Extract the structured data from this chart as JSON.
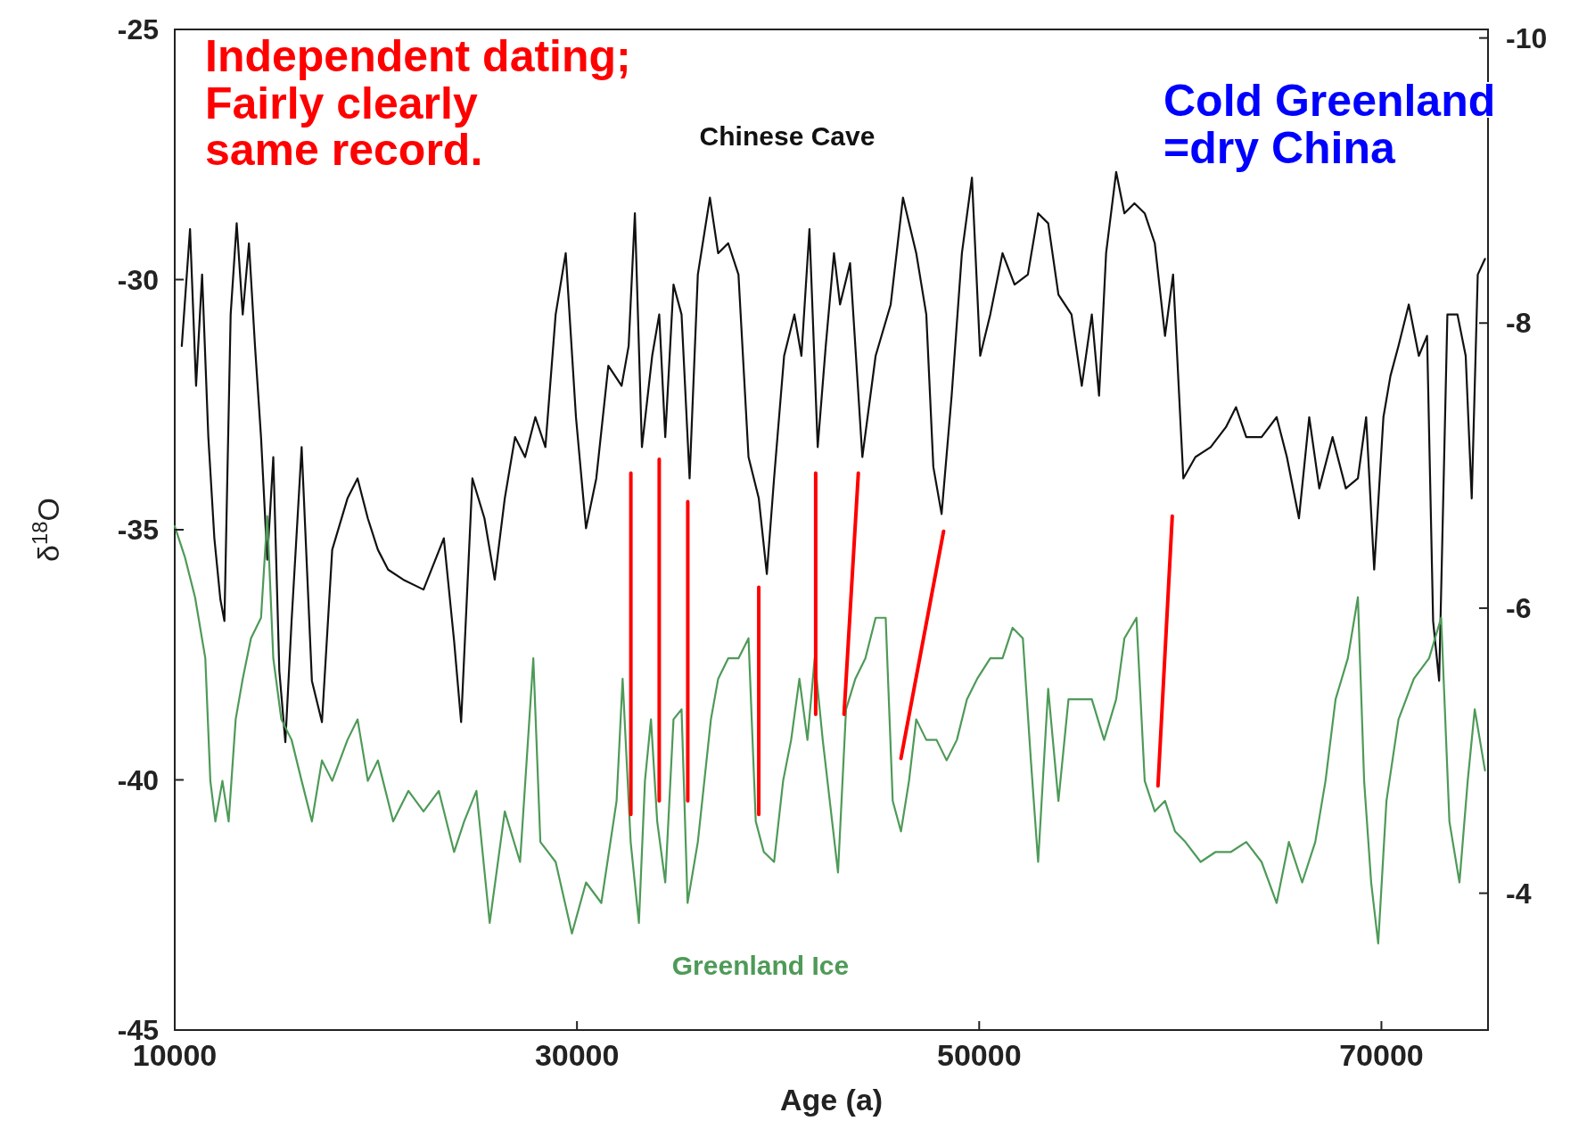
{
  "chart_data": {
    "type": "line",
    "xlabel": "Age (a)",
    "ylabel": "δ$^{18}$O",
    "xlim": [
      10000,
      75300
    ],
    "xticks": [
      10000,
      30000,
      50000,
      70000
    ],
    "ylim": [
      -45,
      -25
    ],
    "yticks": [
      -45,
      -40,
      -35,
      -30,
      -25
    ],
    "y2lim": [
      -3.04,
      -10.06
    ],
    "y2ticks": [
      -10,
      -8,
      -6,
      -4
    ],
    "grid": false,
    "annotations": [
      "Independent dating;\nFairly clearly\nsame record.",
      "Cold Greenland\n=dry China"
    ],
    "series": [
      {
        "name": "Chinese Cave",
        "color": "#111111",
        "axis": "y2",
        "x": [
          10350,
          10760,
          11060,
          11360,
          11670,
          11970,
          12270,
          12470,
          12780,
          13080,
          13380,
          13690,
          13990,
          14290,
          14600,
          14900,
          15200,
          15500,
          15810,
          16310,
          16820,
          17320,
          17830,
          18590,
          19090,
          19600,
          20100,
          20610,
          21360,
          22370,
          23380,
          23890,
          24240,
          24800,
          25400,
          25910,
          26410,
          26920,
          27420,
          27930,
          28430,
          28940,
          29440,
          29950,
          30450,
          30960,
          31560,
          32220,
          32570,
          32880,
          33230,
          33740,
          34090,
          34390,
          34800,
          35200,
          35600,
          36010,
          36610,
          37020,
          37520,
          38030,
          38530,
          39040,
          39440,
          39800,
          40300,
          40810,
          41160,
          41560,
          41970,
          42370,
          42780,
          43080,
          43580,
          44190,
          44850,
          45600,
          46210,
          46870,
          47370,
          47720,
          48130,
          48630,
          49140,
          49640,
          50050,
          50550,
          51160,
          51760,
          52420,
          52930,
          53430,
          53940,
          54590,
          55100,
          55600,
          55960,
          56310,
          56810,
          57220,
          57720,
          58230,
          58730,
          59240,
          59640,
          60150,
          60750,
          61510,
          62270,
          62770,
          63280,
          64040,
          64790,
          65300,
          65900,
          66410,
          66910,
          67570,
          68230,
          68830,
          69240,
          69640,
          70100,
          70450,
          70850,
          71360,
          71860,
          72270,
          72570,
          72870,
          73280,
          73780,
          74190,
          74490,
          74790,
          75150
        ],
        "values": [
          -7.84,
          -8.66,
          -7.56,
          -8.34,
          -7.2,
          -6.49,
          -6.06,
          -5.91,
          -8.06,
          -8.7,
          -8.06,
          -8.56,
          -7.84,
          -7.2,
          -6.34,
          -7.06,
          -5.56,
          -5.06,
          -5.91,
          -7.13,
          -5.49,
          -5.2,
          -6.41,
          -6.77,
          -6.91,
          -6.63,
          -6.41,
          -6.27,
          -6.2,
          -6.13,
          -6.49,
          -5.77,
          -5.2,
          -6.91,
          -6.63,
          -6.2,
          -6.77,
          -7.2,
          -7.06,
          -7.34,
          -7.13,
          -8.06,
          -8.49,
          -7.34,
          -6.56,
          -6.91,
          -7.7,
          -7.56,
          -7.84,
          -8.77,
          -7.13,
          -7.77,
          -8.06,
          -7.2,
          -8.27,
          -8.06,
          -6.91,
          -8.34,
          -8.88,
          -8.49,
          -8.56,
          -8.34,
          -7.06,
          -6.77,
          -6.24,
          -6.91,
          -7.77,
          -8.06,
          -7.77,
          -8.66,
          -7.13,
          -7.84,
          -8.49,
          -8.13,
          -8.42,
          -7.06,
          -7.77,
          -8.13,
          -8.88,
          -8.49,
          -8.06,
          -6.99,
          -6.66,
          -7.49,
          -8.49,
          -9.02,
          -7.77,
          -8.06,
          -8.49,
          -8.27,
          -8.34,
          -8.77,
          -8.7,
          -8.2,
          -8.06,
          -7.56,
          -8.06,
          -7.49,
          -8.49,
          -9.06,
          -8.77,
          -8.84,
          -8.77,
          -8.56,
          -7.91,
          -8.34,
          -6.91,
          -7.06,
          -7.13,
          -7.27,
          -7.41,
          -7.2,
          -7.2,
          -7.34,
          -7.06,
          -6.63,
          -7.34,
          -6.84,
          -7.2,
          -6.84,
          -6.91,
          -7.34,
          -6.27,
          -7.34,
          -7.63,
          -7.84,
          -8.13,
          -7.77,
          -7.91,
          -5.91,
          -5.49,
          -8.06,
          -8.06,
          -7.77,
          -6.77,
          -8.34,
          -8.45
        ]
      },
      {
        "name": "Greenland Ice",
        "color": "#4e9a58",
        "x": [
          10000,
          10500,
          11010,
          11520,
          11770,
          12020,
          12370,
          12680,
          13030,
          13380,
          13790,
          14290,
          14600,
          14900,
          15300,
          15810,
          16310,
          16820,
          17320,
          17830,
          18590,
          19090,
          19600,
          20100,
          20860,
          21620,
          22370,
          23130,
          23890,
          24390,
          25000,
          25660,
          26410,
          27170,
          27830,
          28180,
          28940,
          29750,
          30450,
          31210,
          31970,
          32270,
          32670,
          33080,
          33380,
          33680,
          33990,
          34390,
          34800,
          35200,
          35500,
          36010,
          36660,
          37020,
          37520,
          38030,
          38530,
          38890,
          39290,
          39800,
          40250,
          40650,
          41060,
          41460,
          41820,
          42220,
          42570,
          42980,
          43380,
          43840,
          44340,
          44850,
          45350,
          45700,
          46110,
          46510,
          46870,
          47370,
          47880,
          48380,
          48890,
          49390,
          49900,
          50550,
          51160,
          51660,
          52170,
          52570,
          52930,
          53430,
          53940,
          54440,
          55100,
          55600,
          56210,
          56810,
          57220,
          57820,
          58230,
          58730,
          59240,
          59740,
          60250,
          61010,
          61760,
          62520,
          63280,
          64040,
          64790,
          65400,
          66060,
          66710,
          67220,
          67720,
          68330,
          68830,
          69140,
          69490,
          69840,
          70250,
          70850,
          71610,
          72370,
          72970,
          73380,
          73880,
          74290,
          74640,
          75150
        ],
        "values": [
          -34.93,
          -35.54,
          -36.35,
          -37.57,
          -40.02,
          -40.83,
          -40.02,
          -40.83,
          -38.79,
          -37.98,
          -37.17,
          -36.76,
          -34.73,
          -37.57,
          -38.79,
          -39.2,
          -40.02,
          -40.83,
          -39.61,
          -40.02,
          -39.2,
          -38.79,
          -40.02,
          -39.61,
          -40.83,
          -40.22,
          -40.63,
          -40.22,
          -41.44,
          -40.83,
          -40.22,
          -42.86,
          -40.63,
          -41.64,
          -37.57,
          -41.24,
          -41.64,
          -43.07,
          -42.05,
          -42.46,
          -40.42,
          -37.98,
          -41.24,
          -42.86,
          -40.02,
          -38.79,
          -40.83,
          -42.05,
          -38.79,
          -38.59,
          -42.46,
          -41.24,
          -38.79,
          -37.98,
          -37.57,
          -37.57,
          -37.17,
          -40.83,
          -41.44,
          -41.64,
          -40.02,
          -39.2,
          -37.98,
          -39.2,
          -37.57,
          -39.2,
          -40.42,
          -41.85,
          -38.59,
          -37.98,
          -37.57,
          -36.76,
          -36.76,
          -40.42,
          -41.03,
          -40.02,
          -38.79,
          -39.2,
          -39.2,
          -39.61,
          -39.2,
          -38.39,
          -37.98,
          -37.57,
          -37.57,
          -36.96,
          -37.17,
          -39.61,
          -41.64,
          -38.18,
          -40.42,
          -38.39,
          -38.39,
          -38.39,
          -39.2,
          -38.39,
          -37.17,
          -36.76,
          -40.02,
          -40.63,
          -40.42,
          -41.03,
          -41.24,
          -41.64,
          -41.44,
          -41.44,
          -41.24,
          -41.64,
          -42.46,
          -41.24,
          -42.05,
          -41.24,
          -40.02,
          -38.39,
          -37.57,
          -36.35,
          -40.02,
          -42.05,
          -43.27,
          -40.42,
          -38.79,
          -37.98,
          -37.57,
          -36.76,
          -40.83,
          -42.05,
          -40.02,
          -38.59,
          -39.81
        ]
      },
      {
        "color": "#ff0000",
        "x": [
          32680,
          32680,
          null,
          34090,
          34090,
          null,
          35510,
          35510,
          null,
          39040,
          39040,
          null,
          41870,
          41870,
          null,
          43990,
          43280,
          null,
          48230,
          46110,
          null,
          59600,
          58890
        ],
        "values": [
          -33.87,
          -40.69,
          null,
          -33.59,
          -40.42,
          null,
          -34.44,
          -40.42,
          null,
          -36.15,
          -40.69,
          null,
          -33.87,
          -38.69,
          null,
          -33.87,
          -38.69,
          null,
          -35.03,
          -39.57,
          null,
          -34.73,
          -40.12
        ]
      }
    ]
  }
}
